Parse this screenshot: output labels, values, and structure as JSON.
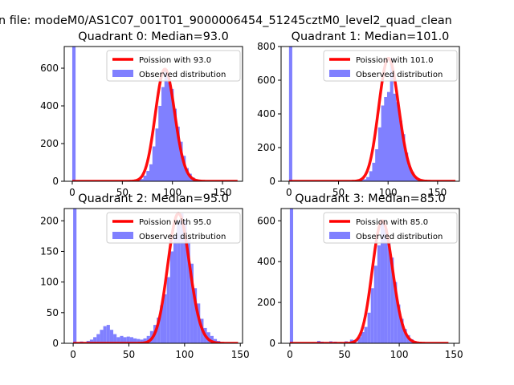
{
  "figure": {
    "suptitle": "n file: modeM0/AS1C07_001T01_9000006454_51245cztM0_level2_quad_clean"
  },
  "colors": {
    "fit": "#ff0000",
    "hist": "#8080ff",
    "axis": "#000000"
  },
  "chart_data": [
    {
      "type": "bar",
      "title": "Quadrant 0: Median=93.0",
      "median": 93.0,
      "xlim": [
        -8,
        170
      ],
      "ylim": [
        0,
        715
      ],
      "xticks": [
        0,
        50,
        100,
        150
      ],
      "yticks": [
        0,
        200,
        400,
        600
      ],
      "legend_position": "top-right",
      "series": [
        {
          "name": "Poission with 93.0",
          "kind": "line",
          "lambda": 93.0,
          "x_range": [
            0,
            165
          ]
        },
        {
          "name": "Observed distribution",
          "kind": "histogram",
          "bin_width": 3.3,
          "bins": [
            [
              0,
              715
            ],
            [
              40,
              2
            ],
            [
              55,
              5
            ],
            [
              58,
              3
            ],
            [
              65,
              8
            ],
            [
              68,
              12
            ],
            [
              71,
              30
            ],
            [
              74,
              55
            ],
            [
              77,
              90
            ],
            [
              80,
              185
            ],
            [
              83,
              280
            ],
            [
              86,
              400
            ],
            [
              89,
              500
            ],
            [
              92,
              595
            ],
            [
              95,
              525
            ],
            [
              98,
              490
            ],
            [
              101,
              385
            ],
            [
              104,
              290
            ],
            [
              107,
              210
            ],
            [
              110,
              135
            ],
            [
              113,
              70
            ],
            [
              116,
              40
            ],
            [
              119,
              20
            ],
            [
              122,
              10
            ],
            [
              125,
              6
            ],
            [
              128,
              3
            ]
          ]
        }
      ]
    },
    {
      "type": "bar",
      "title": "Quadrant 1: Median=101.0",
      "median": 101.0,
      "xlim": [
        -8,
        172
      ],
      "ylim": [
        0,
        800
      ],
      "xticks": [
        0,
        50,
        100,
        150
      ],
      "yticks": [
        0,
        200,
        400,
        600,
        800
      ],
      "legend_position": "top-right",
      "series": [
        {
          "name": "Poission with 101.0",
          "kind": "line",
          "lambda": 101.0,
          "x_range": [
            0,
            168
          ]
        },
        {
          "name": "Observed distribution",
          "kind": "histogram",
          "bin_width": 3.3,
          "bins": [
            [
              0,
              800
            ],
            [
              72,
              8
            ],
            [
              75,
              12
            ],
            [
              78,
              25
            ],
            [
              81,
              60
            ],
            [
              84,
              110
            ],
            [
              87,
              190
            ],
            [
              90,
              320
            ],
            [
              93,
              450
            ],
            [
              96,
              500
            ],
            [
              99,
              530
            ],
            [
              102,
              730
            ],
            [
              105,
              520
            ],
            [
              108,
              470
            ],
            [
              111,
              360
            ],
            [
              114,
              280
            ],
            [
              117,
              170
            ],
            [
              120,
              90
            ],
            [
              123,
              55
            ],
            [
              126,
              25
            ],
            [
              129,
              12
            ],
            [
              132,
              6
            ],
            [
              135,
              3
            ]
          ]
        }
      ]
    },
    {
      "type": "bar",
      "title": "Quadrant 2: Median=95.0",
      "median": 95.0,
      "xlim": [
        -8,
        152
      ],
      "ylim": [
        0,
        220
      ],
      "xticks": [
        0,
        50,
        100,
        150
      ],
      "yticks": [
        0,
        50,
        100,
        150,
        200
      ],
      "legend_position": "top-right",
      "series": [
        {
          "name": "Poission with 95.0",
          "kind": "line",
          "lambda": 95.0,
          "x_range": [
            0,
            148
          ]
        },
        {
          "name": "Observed distribution",
          "kind": "histogram",
          "bin_width": 3.0,
          "bins": [
            [
              0,
              220
            ],
            [
              6,
              3
            ],
            [
              9,
              2
            ],
            [
              12,
              4
            ],
            [
              15,
              6
            ],
            [
              18,
              10
            ],
            [
              21,
              15
            ],
            [
              24,
              22
            ],
            [
              27,
              28
            ],
            [
              30,
              30
            ],
            [
              33,
              22
            ],
            [
              36,
              15
            ],
            [
              39,
              10
            ],
            [
              42,
              12
            ],
            [
              45,
              10
            ],
            [
              48,
              11
            ],
            [
              51,
              10
            ],
            [
              54,
              8
            ],
            [
              57,
              7
            ],
            [
              60,
              6
            ],
            [
              63,
              8
            ],
            [
              66,
              12
            ],
            [
              69,
              20
            ],
            [
              72,
              30
            ],
            [
              75,
              42
            ],
            [
              78,
              62
            ],
            [
              81,
              80
            ],
            [
              84,
              108
            ],
            [
              87,
              150
            ],
            [
              90,
              175
            ],
            [
              93,
              200
            ],
            [
              96,
              212
            ],
            [
              99,
              200
            ],
            [
              102,
              170
            ],
            [
              105,
              130
            ],
            [
              108,
              90
            ],
            [
              111,
              65
            ],
            [
              114,
              40
            ],
            [
              117,
              25
            ],
            [
              120,
              18
            ],
            [
              123,
              12
            ],
            [
              126,
              7
            ],
            [
              129,
              4
            ],
            [
              132,
              2
            ]
          ]
        }
      ]
    },
    {
      "type": "bar",
      "title": "Quadrant 3: Median=85.0",
      "median": 85.0,
      "xlim": [
        -8,
        155
      ],
      "ylim": [
        0,
        660
      ],
      "xticks": [
        0,
        50,
        100,
        150
      ],
      "yticks": [
        0,
        200,
        400,
        600
      ],
      "legend_position": "top-right",
      "series": [
        {
          "name": "Poission with 85.0",
          "kind": "line",
          "lambda": 85.0,
          "x_range": [
            0,
            145
          ]
        },
        {
          "name": "Observed distribution",
          "kind": "histogram",
          "bin_width": 3.0,
          "bins": [
            [
              0,
              660
            ],
            [
              20,
              5
            ],
            [
              25,
              12
            ],
            [
              28,
              8
            ],
            [
              32,
              6
            ],
            [
              36,
              10
            ],
            [
              40,
              8
            ],
            [
              45,
              6
            ],
            [
              50,
              10
            ],
            [
              55,
              18
            ],
            [
              58,
              15
            ],
            [
              62,
              30
            ],
            [
              65,
              55
            ],
            [
              68,
              80
            ],
            [
              71,
              150
            ],
            [
              74,
              270
            ],
            [
              77,
              380
            ],
            [
              80,
              480
            ],
            [
              83,
              600
            ],
            [
              86,
              560
            ],
            [
              89,
              490
            ],
            [
              92,
              420
            ],
            [
              95,
              300
            ],
            [
              98,
              190
            ],
            [
              101,
              120
            ],
            [
              104,
              70
            ],
            [
              107,
              40
            ],
            [
              110,
              20
            ],
            [
              113,
              10
            ],
            [
              116,
              5
            ]
          ]
        }
      ]
    }
  ]
}
